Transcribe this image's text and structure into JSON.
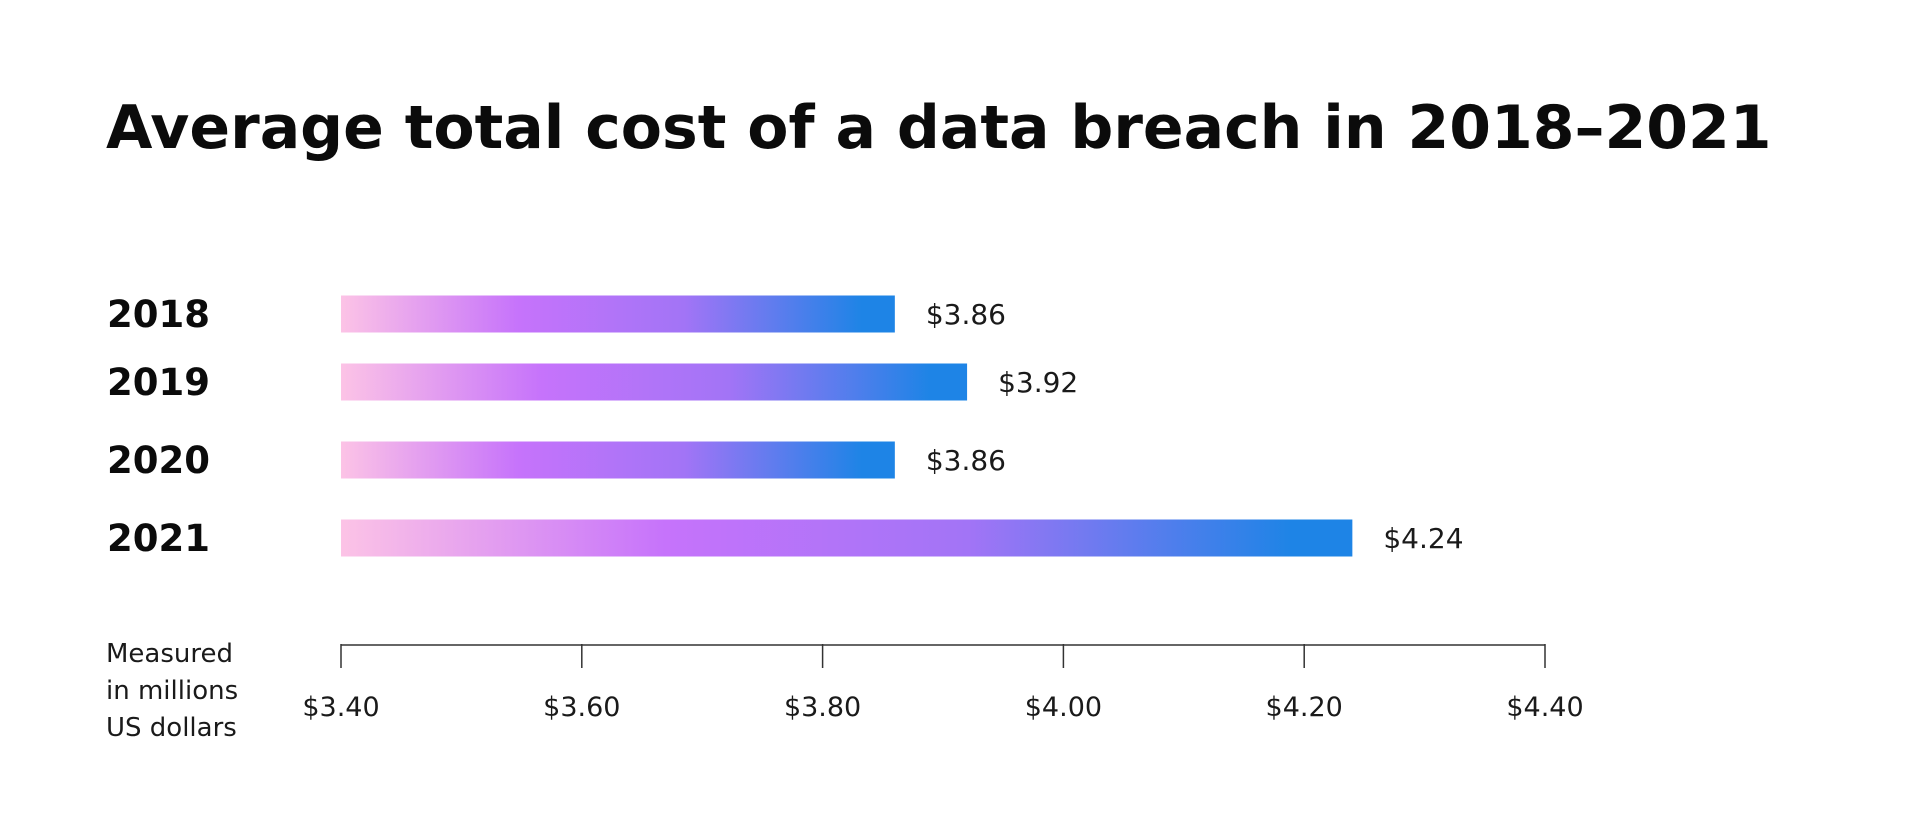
{
  "chart_data": {
    "type": "bar",
    "orientation": "horizontal",
    "title": "Average total cost of a data breach in 2018–2021",
    "categories": [
      "2018",
      "2019",
      "2020",
      "2021"
    ],
    "values": [
      3.86,
      3.92,
      3.86,
      4.24
    ],
    "value_labels": [
      "$3.86",
      "$3.92",
      "$3.86",
      "$4.24"
    ],
    "xlim": [
      3.4,
      4.4
    ],
    "x_ticks": [
      3.4,
      3.6,
      3.8,
      4.0,
      4.2,
      4.4
    ],
    "x_tick_labels": [
      "$3.40",
      "$3.60",
      "$3.80",
      "$4.00",
      "$4.20",
      "$4.40"
    ],
    "xlabel_lines": [
      "Measured",
      "in millions",
      "US dollars"
    ],
    "grid": false,
    "legend": "none",
    "bar_gradient": [
      "#fcc3e6",
      "#c673fb",
      "#a274f6",
      "#1e84e6"
    ]
  }
}
